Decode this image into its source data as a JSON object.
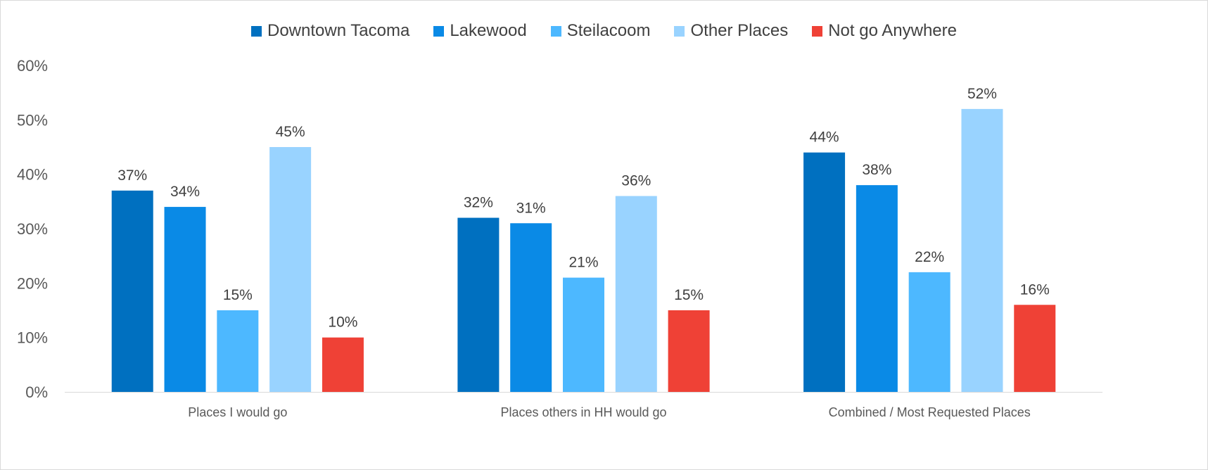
{
  "chart_data": {
    "type": "bar",
    "categories": [
      "Places I would go",
      "Places others in HH would go",
      "Combined / Most Requested Places"
    ],
    "series": [
      {
        "name": "Downtown Tacoma",
        "color": "#0070c0",
        "values": [
          37,
          32,
          44
        ],
        "labels": [
          "37%",
          "32%",
          "44%"
        ]
      },
      {
        "name": "Lakewood",
        "color": "#0a8ae6",
        "values": [
          34,
          31,
          38
        ],
        "labels": [
          "34%",
          "31%",
          "38%"
        ]
      },
      {
        "name": "Steilacoom",
        "color": "#4db8ff",
        "values": [
          15,
          21,
          22
        ],
        "labels": [
          "15%",
          "21%",
          "22%"
        ]
      },
      {
        "name": "Other Places",
        "color": "#99d3ff",
        "values": [
          45,
          36,
          52
        ],
        "labels": [
          "45%",
          "36%",
          "52%"
        ]
      },
      {
        "name": "Not go Anywhere",
        "color": "#ef4136",
        "values": [
          10,
          15,
          16
        ],
        "labels": [
          "10%",
          "15%",
          "16%"
        ]
      }
    ],
    "yticks": [
      {
        "value": 0,
        "label": "0%"
      },
      {
        "value": 10,
        "label": "10%"
      },
      {
        "value": 20,
        "label": "20%"
      },
      {
        "value": 30,
        "label": "30%"
      },
      {
        "value": 40,
        "label": "40%"
      },
      {
        "value": 50,
        "label": "50%"
      },
      {
        "value": 60,
        "label": "60%"
      }
    ],
    "ylim": [
      0,
      60
    ],
    "grid": false,
    "legend_position": "top"
  }
}
